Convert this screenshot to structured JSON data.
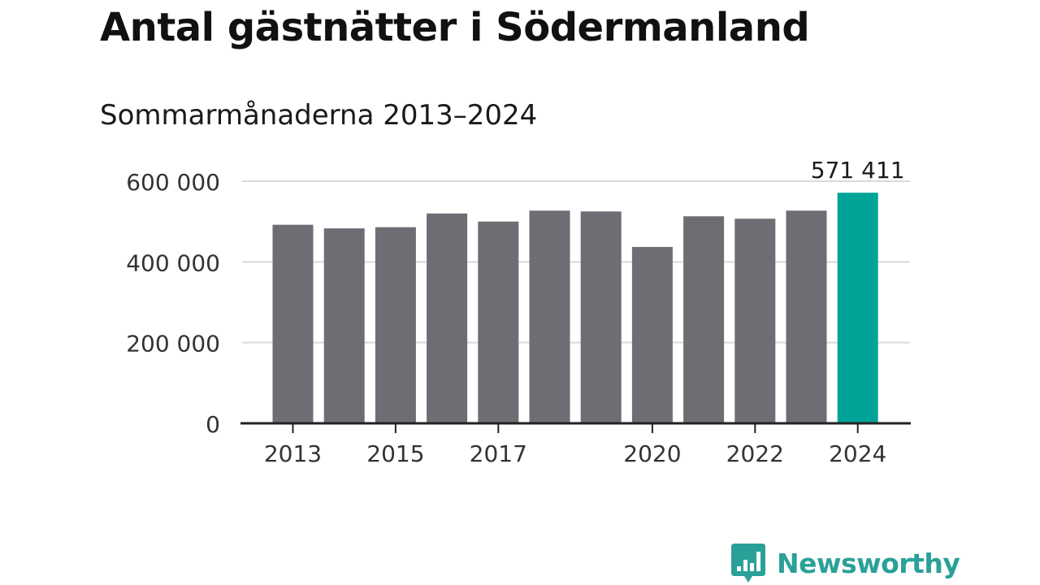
{
  "header": {
    "title": "Antal gästnätter i Södermanland",
    "subtitle": "Sommarmånaderna 2013–2024"
  },
  "brand": {
    "name": "Newsworthy",
    "icon": "bar-chart-speech-bubble-icon"
  },
  "colors": {
    "bar": "#6d6d74",
    "highlight": "#00a398",
    "grid": "#d9d9d9",
    "axis": "#222222",
    "text": "#1a1a1a",
    "tick_text": "#333333",
    "brand": "#2aa198"
  },
  "chart_data": {
    "type": "bar",
    "title": "Antal gästnätter i Södermanland",
    "subtitle": "Sommarmånaderna 2013–2024",
    "xlabel": "",
    "ylabel": "",
    "categories": [
      "2013",
      "2014",
      "2015",
      "2016",
      "2017",
      "2018",
      "2019",
      "2020",
      "2021",
      "2022",
      "2023",
      "2024"
    ],
    "values": [
      492000,
      483000,
      486000,
      520000,
      500000,
      527000,
      525000,
      437000,
      513000,
      507000,
      527000,
      571411
    ],
    "highlight_index": 11,
    "highlight_label": "571 411",
    "ylim": [
      0,
      600000
    ],
    "y_ticks": [
      0,
      200000,
      400000,
      600000
    ],
    "y_tick_labels": [
      "0",
      "200 000",
      "400 000",
      "600 000"
    ],
    "x_tick_labels": [
      "2013",
      "2015",
      "2017",
      "2020",
      "2022",
      "2024"
    ],
    "grid": true,
    "legend": "none"
  }
}
